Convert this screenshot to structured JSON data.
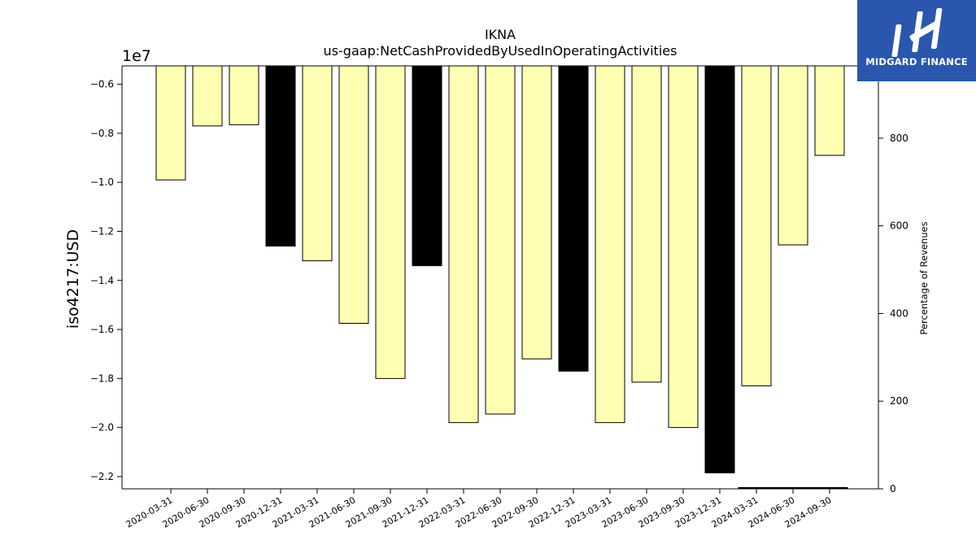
{
  "chart_data": {
    "type": "bar",
    "title": "IKNA",
    "subtitle": "us-gaap:NetCashProvidedByUsedInOperatingActivities",
    "ylabel": "iso4217:USD",
    "y_offset_label": "1e7",
    "y2label": "Percentage of Revenues",
    "ylim": [
      -2.25,
      -0.525
    ],
    "y2lim": [
      0,
      965
    ],
    "yticks": [
      "-0.6",
      "-0.8",
      "-1.0",
      "-1.2",
      "-1.4",
      "-1.6",
      "-1.8",
      "-2.0",
      "-2.2"
    ],
    "y2ticks": [
      "0",
      "200",
      "400",
      "600",
      "800"
    ],
    "categories": [
      "2020-03-31",
      "2020-06-30",
      "2020-09-30",
      "2020-12-31",
      "2021-03-31",
      "2021-06-30",
      "2021-09-30",
      "2021-12-31",
      "2022-03-31",
      "2022-06-30",
      "2022-09-30",
      "2022-12-31",
      "2023-03-31",
      "2023-06-30",
      "2023-09-30",
      "2023-12-31",
      "2024-03-31",
      "2024-06-30",
      "2024-09-30"
    ],
    "values": [
      -0.99,
      -0.77,
      -0.765,
      -1.26,
      -1.32,
      -1.575,
      -1.8,
      -1.34,
      -1.98,
      -1.945,
      -1.72,
      -1.77,
      -1.98,
      -1.815,
      -2.0,
      -2.185,
      -1.83,
      -1.255,
      -0.89
    ],
    "bar_kinds": [
      "q",
      "q",
      "q",
      "a",
      "q",
      "q",
      "q",
      "a",
      "q",
      "q",
      "q",
      "a",
      "q",
      "q",
      "q",
      "a",
      "q",
      "q",
      "q"
    ],
    "secondary_series": {
      "values": [
        null,
        null,
        null,
        null,
        null,
        null,
        null,
        null,
        null,
        null,
        null,
        null,
        null,
        null,
        null,
        null,
        2,
        2,
        2
      ],
      "color": "#000000"
    },
    "colors": {
      "quarterly": "#ffffb3",
      "annual": "#000000",
      "edge": "#000000"
    },
    "grid": false,
    "legend": "none"
  },
  "brand": {
    "name": "MIDGARD FINANCE",
    "icon": "midgard-logo-icon",
    "color": "#2a57ad"
  }
}
